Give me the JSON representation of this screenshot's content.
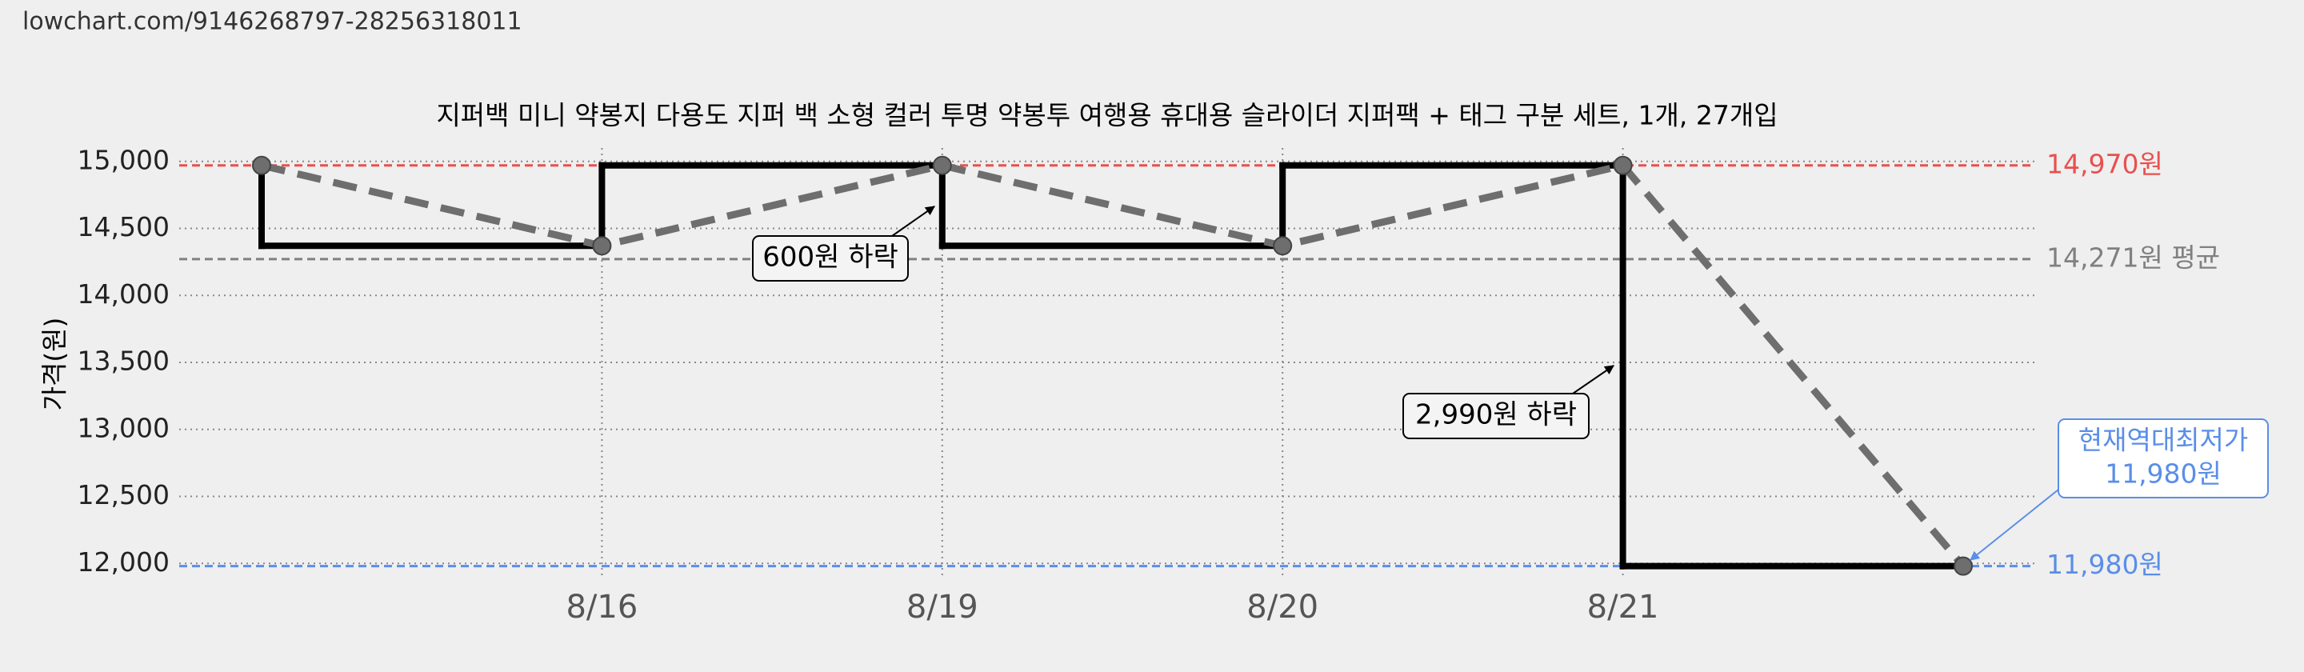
{
  "page_url": "lowchart.com/9146268797-28256318011",
  "chart_data": {
    "type": "line",
    "title": "지퍼백 미니 약봉지 다용도 지퍼 백 소형 컬러 투명 약봉투 여행용 휴대용 슬라이더 지퍼팩 + 태그 구분 세트, 1개, 27개입",
    "y_label": "가격(원)",
    "categories": [
      null,
      "8/16",
      "8/19",
      "8/20",
      "8/21",
      null
    ],
    "series": [
      {
        "color": "#000000",
        "values": [
          14970,
          14370,
          14970,
          14370,
          14970,
          11980
        ]
      }
    ],
    "ylim": [
      11900,
      15100
    ],
    "yticks": [
      {
        "value": 12000,
        "label": "12,000"
      },
      {
        "value": 12500,
        "label": "12,500"
      },
      {
        "value": 13000,
        "label": "13,000"
      },
      {
        "value": 13500,
        "label": "13,500"
      },
      {
        "value": 14000,
        "label": "14,000"
      },
      {
        "value": 14500,
        "label": "14,500"
      },
      {
        "value": 15000,
        "label": "15,000"
      }
    ],
    "grid": true,
    "reference_lines": [
      {
        "value": 14970,
        "label": "14,970원",
        "color": "#e8504f"
      },
      {
        "value": 14271,
        "label": "14,271원 평균",
        "color": "#808080"
      },
      {
        "value": 11980,
        "label": "11,980원",
        "color": "#5a8ee8"
      }
    ],
    "annotations": [
      {
        "lines": [
          "600원 하락"
        ]
      },
      {
        "lines": [
          "2,990원 하락"
        ]
      },
      {
        "lines": [
          "현재역대최저가",
          "11,980원"
        ]
      }
    ]
  }
}
